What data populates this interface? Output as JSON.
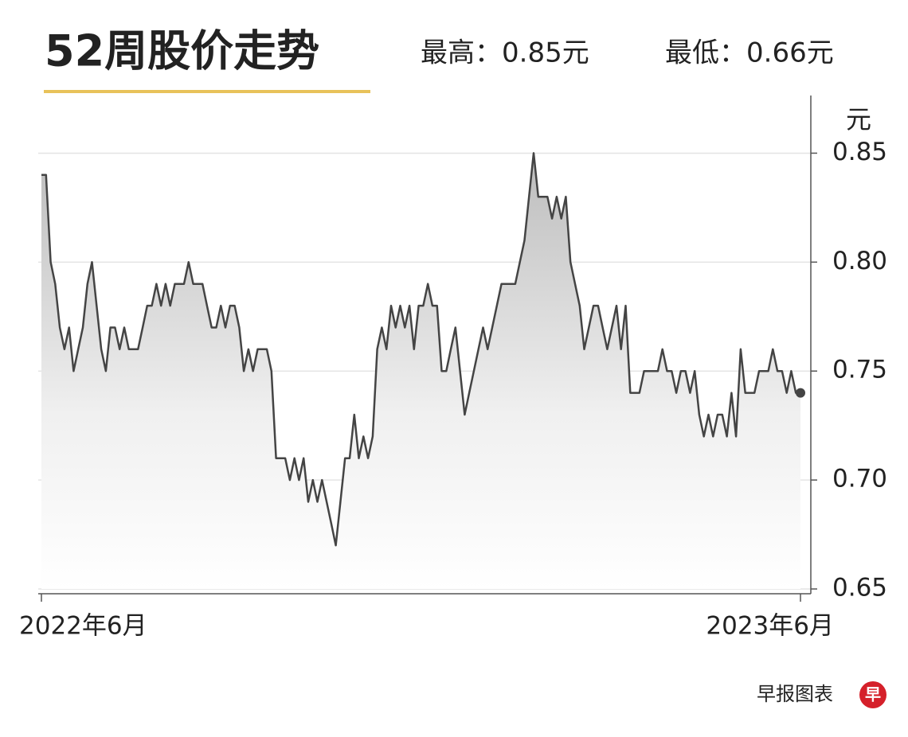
{
  "chart_data": {
    "type": "line",
    "title": "52周股价走势",
    "subtitle_high": "最高：0.85元",
    "subtitle_low": "最低：0.66元",
    "y_label": "元",
    "source": "早报图表",
    "logo": "早",
    "categories": [
      "2022年6月",
      null,
      null,
      null,
      null,
      null,
      null,
      null,
      null,
      null,
      null,
      null,
      null,
      null,
      null,
      null,
      null,
      null,
      null,
      null,
      null,
      null,
      null,
      null,
      null,
      null,
      null,
      null,
      null,
      null,
      null,
      null,
      null,
      null,
      null,
      null,
      null,
      null,
      null,
      null,
      null,
      null,
      null,
      null,
      null,
      null,
      null,
      null,
      null,
      null,
      null,
      null,
      null,
      null,
      null,
      null,
      null,
      null,
      null,
      null,
      null,
      null,
      null,
      null,
      null,
      null,
      null,
      null,
      null,
      null,
      null,
      null,
      null,
      null,
      null,
      null,
      null,
      null,
      null,
      null,
      null,
      null,
      null,
      null,
      null,
      null,
      null,
      null,
      null,
      null,
      null,
      null,
      null,
      null,
      null,
      null,
      null,
      null,
      null,
      null,
      null,
      null,
      null,
      null,
      null,
      null,
      null,
      null,
      null,
      null,
      null,
      null,
      null,
      null,
      null,
      null,
      null,
      null,
      null,
      null,
      null,
      null,
      null,
      null,
      null,
      null,
      null,
      null,
      null,
      null,
      null,
      null,
      null,
      null,
      null,
      null,
      null,
      null,
      null,
      null,
      null,
      null,
      null,
      null,
      null,
      null,
      null,
      null,
      null,
      null,
      null,
      null,
      null,
      null,
      null,
      null,
      null,
      null,
      null,
      null,
      null,
      null,
      null,
      null,
      null,
      "2023年6月"
    ],
    "values": [
      0.84,
      0.84,
      0.8,
      0.79,
      0.77,
      0.76,
      0.77,
      0.75,
      0.76,
      0.77,
      0.79,
      0.8,
      0.78,
      0.76,
      0.75,
      0.77,
      0.77,
      0.76,
      0.77,
      0.76,
      0.76,
      0.76,
      0.77,
      0.78,
      0.78,
      0.79,
      0.78,
      0.79,
      0.78,
      0.79,
      0.79,
      0.79,
      0.8,
      0.79,
      0.79,
      0.79,
      0.78,
      0.77,
      0.77,
      0.78,
      0.77,
      0.78,
      0.78,
      0.77,
      0.75,
      0.76,
      0.75,
      0.76,
      0.76,
      0.76,
      0.75,
      0.71,
      0.71,
      0.71,
      0.7,
      0.71,
      0.7,
      0.71,
      0.69,
      0.7,
      0.69,
      0.7,
      0.69,
      0.68,
      0.67,
      0.69,
      0.71,
      0.71,
      0.73,
      0.71,
      0.72,
      0.71,
      0.72,
      0.76,
      0.77,
      0.76,
      0.78,
      0.77,
      0.78,
      0.77,
      0.78,
      0.76,
      0.78,
      0.78,
      0.79,
      0.78,
      0.78,
      0.75,
      0.75,
      0.76,
      0.77,
      0.75,
      0.73,
      0.74,
      0.75,
      0.76,
      0.77,
      0.76,
      0.77,
      0.78,
      0.79,
      0.79,
      0.79,
      0.79,
      0.8,
      0.81,
      0.83,
      0.85,
      0.83,
      0.83,
      0.83,
      0.82,
      0.83,
      0.82,
      0.83,
      0.8,
      0.79,
      0.78,
      0.76,
      0.77,
      0.78,
      0.78,
      0.77,
      0.76,
      0.77,
      0.78,
      0.76,
      0.78,
      0.74,
      0.74,
      0.74,
      0.75,
      0.75,
      0.75,
      0.75,
      0.76,
      0.75,
      0.75,
      0.74,
      0.75,
      0.75,
      0.74,
      0.75,
      0.73,
      0.72,
      0.73,
      0.72,
      0.73,
      0.73,
      0.72,
      0.74,
      0.72,
      0.76,
      0.74,
      0.74,
      0.74,
      0.75,
      0.75,
      0.75,
      0.76,
      0.75,
      0.75,
      0.74,
      0.75,
      0.74,
      0.74
    ],
    "color": "#444444",
    "ylim": [
      0.65,
      0.875
    ],
    "yticks": [
      0.65,
      {
        "value": 0.7,
        "label": "0.70"
      },
      0.75,
      {
        "value": 0.8,
        "label": "0.80"
      },
      0.85
    ],
    "grid": true
  }
}
